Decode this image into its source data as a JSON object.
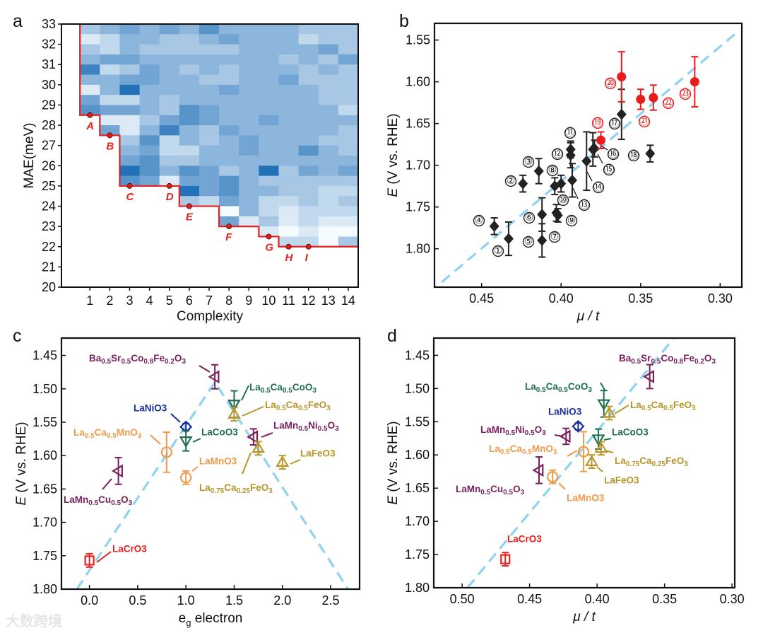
{
  "watermark": "大数跨境",
  "chart_data": [
    {
      "panel": "a",
      "type": "heatmap",
      "xlabel": "Complexity",
      "ylabel": "MAE(meV)",
      "xticks": [
        1,
        2,
        3,
        4,
        5,
        6,
        7,
        8,
        9,
        10,
        11,
        12,
        13,
        14
      ],
      "yticks": [
        20,
        21,
        22,
        23,
        24,
        25,
        26,
        27,
        28,
        29,
        30,
        31,
        32,
        33
      ],
      "xlim": [
        -0.43,
        14.5
      ],
      "ylim": [
        20,
        33
      ],
      "row_step": 0.5,
      "intensity_scale": "0 (light) - 9 (dark blue)",
      "rows_top_down": [
        "34545464444333",
        "12443345444233",
        "32433333444453",
        "45544444443435",
        "72354343444343",
        "44554433445333",
        "14844445444433",
        "52243444444433",
        "65543654444442",
        "-1135654454444",
        "-5147435444443",
        "--362434544433",
        "--452244544643",
        "--563344444444",
        "--864653483545",
        "--651556433333",
        "-----856443322",
        "-----325422323",
        "-------0421222",
        "-------5131211",
        "---------10100",
        "----------2203"
      ],
      "frontier_color": "#e8201e",
      "pareto_points": [
        {
          "label": "A",
          "x": 1,
          "y": 28.5
        },
        {
          "label": "B",
          "x": 2,
          "y": 27.5
        },
        {
          "label": "C",
          "x": 3,
          "y": 25
        },
        {
          "label": "D",
          "x": 5,
          "y": 25
        },
        {
          "label": "E",
          "x": 6,
          "y": 24
        },
        {
          "label": "F",
          "x": 8,
          "y": 23
        },
        {
          "label": "G",
          "x": 10,
          "y": 22.5
        },
        {
          "label": "H",
          "x": 11,
          "y": 22
        },
        {
          "label": "I",
          "x": 12,
          "y": 22
        }
      ]
    },
    {
      "panel": "b",
      "type": "scatter",
      "xlabel": "μ / t",
      "ylabel": "E (V vs. RHE)",
      "xlim": [
        0.4796,
        0.2864
      ],
      "ylim": [
        1.53,
        1.846
      ],
      "xticks": [
        "0.45",
        "0.40",
        "0.35",
        "0.30"
      ],
      "yticks": [
        "1.55",
        "1.60",
        "1.65",
        "1.70",
        "1.75",
        "1.80"
      ],
      "trendline": [
        [
          0.475,
          1.84
        ],
        [
          0.289,
          1.54
        ]
      ],
      "colors": {
        "black": "#222222",
        "red": "#e81c1c",
        "trend": "#8fd3f0"
      },
      "points": [
        {
          "id": "①",
          "x": 0.433,
          "y": 1.788,
          "err": 0.02,
          "group": "black"
        },
        {
          "id": "②",
          "x": 0.424,
          "y": 1.722,
          "err": 0.01,
          "group": "black"
        },
        {
          "id": "③",
          "x": 0.414,
          "y": 1.707,
          "err": 0.015,
          "group": "black"
        },
        {
          "id": "④",
          "x": 0.442,
          "y": 1.773,
          "err": 0.01,
          "group": "black"
        },
        {
          "id": "⑤",
          "x": 0.412,
          "y": 1.79,
          "err": 0.02,
          "group": "black"
        },
        {
          "id": "⑥",
          "x": 0.412,
          "y": 1.759,
          "err": 0.02,
          "group": "black"
        },
        {
          "id": "⑦",
          "x": 0.403,
          "y": 1.757,
          "err": 0.01,
          "group": "black"
        },
        {
          "id": "⑧",
          "x": 0.404,
          "y": 1.725,
          "err": 0.01,
          "group": "black"
        },
        {
          "id": "⑨",
          "x": 0.402,
          "y": 1.76,
          "err": 0.008,
          "group": "black"
        },
        {
          "id": "⑩",
          "x": 0.4,
          "y": 1.722,
          "err": 0.01,
          "group": "black"
        },
        {
          "id": "⑪",
          "x": 0.394,
          "y": 1.681,
          "err": 0.01,
          "group": "black"
        },
        {
          "id": "⑫",
          "x": 0.394,
          "y": 1.688,
          "err": 0.015,
          "group": "black"
        },
        {
          "id": "⑬",
          "x": 0.393,
          "y": 1.718,
          "err": 0.02,
          "group": "black"
        },
        {
          "id": "⑭",
          "x": 0.384,
          "y": 1.695,
          "err": 0.035,
          "group": "black"
        },
        {
          "id": "⑮",
          "x": 0.38,
          "y": 1.681,
          "err": 0.02,
          "group": "black"
        },
        {
          "id": "⑯",
          "x": 0.379,
          "y": 1.68,
          "err": 0.01,
          "group": "black"
        },
        {
          "id": "⑰",
          "x": 0.362,
          "y": 1.639,
          "err": 0.03,
          "group": "black"
        },
        {
          "id": "⑱",
          "x": 0.344,
          "y": 1.686,
          "err": 0.01,
          "group": "black"
        },
        {
          "id": "⑲",
          "x": 0.375,
          "y": 1.67,
          "err": 0.01,
          "group": "red"
        },
        {
          "id": "⑳",
          "x": 0.362,
          "y": 1.594,
          "err": 0.03,
          "group": "red"
        },
        {
          "id": "㉑",
          "x": 0.35,
          "y": 1.621,
          "err": 0.012,
          "group": "red"
        },
        {
          "id": "㉒",
          "x": 0.342,
          "y": 1.619,
          "err": 0.015,
          "group": "red"
        },
        {
          "id": "㉓",
          "x": 0.316,
          "y": 1.6,
          "err": 0.03,
          "group": "red"
        }
      ]
    },
    {
      "panel": "c",
      "type": "scatter",
      "xlabel": "eg electron",
      "ylabel": "E (V vs. RHE)",
      "xlim": [
        -0.29,
        2.8
      ],
      "ylim": [
        1.424,
        1.8
      ],
      "xticks": [
        "0.0",
        "0.5",
        "1.0",
        "1.5",
        "2.0",
        "2.5"
      ],
      "yticks": [
        "1.45",
        "1.50",
        "1.55",
        "1.60",
        "1.65",
        "1.70",
        "1.75",
        "1.80"
      ],
      "trendline": [
        [
          -0.13,
          1.8
        ],
        [
          1.3,
          1.49
        ],
        [
          2.68,
          1.8
        ]
      ],
      "points": [
        {
          "label": "LaCrO3",
          "x": 0.0,
          "y": 1.757,
          "err": 0.01,
          "marker": "square",
          "color": "#e8201e"
        },
        {
          "label": "LaMn0.5Cu0.5O3",
          "x": 0.3,
          "y": 1.623,
          "err": 0.02,
          "marker": "left",
          "color": "#7a1f5c"
        },
        {
          "label": "La0.5Ca0.5MnO3",
          "x": 0.8,
          "y": 1.595,
          "err": 0.03,
          "marker": "circle",
          "color": "#f39a4a"
        },
        {
          "label": "LaMnO3",
          "x": 1.0,
          "y": 1.633,
          "err": 0.01,
          "marker": "circle",
          "color": "#f39a4a"
        },
        {
          "label": "LaNiO3",
          "x": 1.0,
          "y": 1.557,
          "err": 0.005,
          "marker": "diamond",
          "color": "#1a2f9c"
        },
        {
          "label": "LaCoO3",
          "x": 1.0,
          "y": 1.578,
          "err": 0.015,
          "marker": "down",
          "color": "#1e6e50"
        },
        {
          "label": "Ba0.5Sr0.5Co0.8Fe0.2O3",
          "x": 1.3,
          "y": 1.482,
          "err": 0.018,
          "marker": "left",
          "color": "#7a1f5c"
        },
        {
          "label": "La0.5Ca0.5CoO3",
          "x": 1.5,
          "y": 1.523,
          "err": 0.02,
          "marker": "down",
          "color": "#1e6e50"
        },
        {
          "label": "La0.5Ca0.5FeO3",
          "x": 1.5,
          "y": 1.538,
          "err": 0.01,
          "marker": "up",
          "color": "#b8962a"
        },
        {
          "label": "LaMn0.5Ni0.5O3",
          "x": 1.7,
          "y": 1.572,
          "err": 0.012,
          "marker": "left",
          "color": "#7a1f5c"
        },
        {
          "label": "La0.75Ca0.25FeO3",
          "x": 1.75,
          "y": 1.589,
          "err": 0.01,
          "marker": "up",
          "color": "#b8962a"
        },
        {
          "label": "LaFeO3",
          "x": 2.0,
          "y": 1.61,
          "err": 0.01,
          "marker": "up",
          "color": "#b8962a"
        }
      ]
    },
    {
      "panel": "d",
      "type": "scatter",
      "xlabel": "μ / t",
      "ylabel": "E (V vs. RHE)",
      "xlim": [
        0.521,
        0.298
      ],
      "ylim": [
        1.424,
        1.8
      ],
      "xticks": [
        "0.50",
        "0.45",
        "0.40",
        "0.35",
        "0.30"
      ],
      "yticks": [
        "1.45",
        "1.50",
        "1.55",
        "1.60",
        "1.65",
        "1.70",
        "1.75",
        "1.80"
      ],
      "trendline": [
        [
          0.496,
          1.8
        ],
        [
          0.343,
          1.424
        ]
      ],
      "points": [
        {
          "label": "LaCrO3",
          "x": 0.468,
          "y": 1.757,
          "err": 0.01,
          "marker": "square",
          "color": "#e8201e"
        },
        {
          "label": "LaMn0.5Cu0.5O3",
          "x": 0.443,
          "y": 1.623,
          "err": 0.02,
          "marker": "left",
          "color": "#7a1f5c"
        },
        {
          "label": "La0.5Ca0.5MnO3",
          "x": 0.41,
          "y": 1.595,
          "err": 0.03,
          "marker": "circle",
          "color": "#f39a4a"
        },
        {
          "label": "LaMnO3",
          "x": 0.433,
          "y": 1.633,
          "err": 0.01,
          "marker": "circle",
          "color": "#f39a4a"
        },
        {
          "label": "LaNiO3",
          "x": 0.414,
          "y": 1.557,
          "err": 0.005,
          "marker": "diamond",
          "color": "#1a2f9c"
        },
        {
          "label": "LaCoO3",
          "x": 0.399,
          "y": 1.576,
          "err": 0.015,
          "marker": "down",
          "color": "#1e6e50"
        },
        {
          "label": "Ba0.5Sr0.5Co0.8Fe0.2O3",
          "x": 0.361,
          "y": 1.482,
          "err": 0.018,
          "marker": "left",
          "color": "#7a1f5c"
        },
        {
          "label": "La0.5Ca0.5CoO3",
          "x": 0.395,
          "y": 1.523,
          "err": 0.02,
          "marker": "down",
          "color": "#1e6e50"
        },
        {
          "label": "La0.5Ca0.5FeO3",
          "x": 0.391,
          "y": 1.537,
          "err": 0.01,
          "marker": "up",
          "color": "#b8962a"
        },
        {
          "label": "LaMn0.5Ni0.5O3",
          "x": 0.423,
          "y": 1.572,
          "err": 0.012,
          "marker": "left",
          "color": "#7a1f5c"
        },
        {
          "label": "La0.75Ca0.25FeO3",
          "x": 0.397,
          "y": 1.59,
          "err": 0.01,
          "marker": "up",
          "color": "#b8962a"
        },
        {
          "label": "LaFeO3",
          "x": 0.404,
          "y": 1.61,
          "err": 0.01,
          "marker": "up",
          "color": "#b8962a"
        }
      ]
    }
  ]
}
